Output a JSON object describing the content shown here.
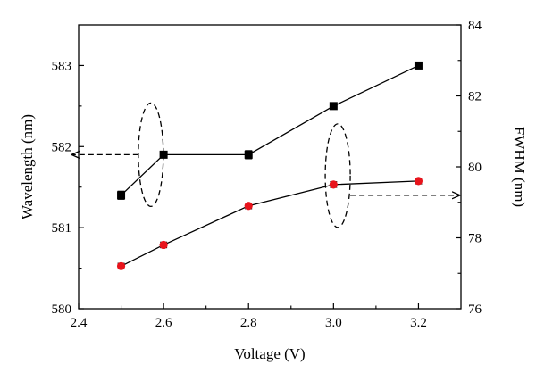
{
  "chart_data": {
    "type": "scatter",
    "x": [
      2.5,
      2.6,
      2.8,
      3.0,
      3.2
    ],
    "xlabel": "Voltage (V)",
    "ylabel_left": "Wavelength (nm)",
    "ylabel_right": "FWHM (nm)",
    "xlim": [
      2.4,
      3.3
    ],
    "ylim_left": [
      580,
      583.5
    ],
    "ylim_right": [
      76,
      84
    ],
    "x_ticks": [
      "2.4",
      "2.6",
      "2.8",
      "3.0",
      "3.2"
    ],
    "y_left_ticks": [
      "580",
      "581",
      "582",
      "583"
    ],
    "y_right_ticks": [
      "76",
      "78",
      "80",
      "82",
      "84"
    ],
    "grid": false,
    "series": [
      {
        "axis": "left",
        "color": "#000000",
        "marker": "square",
        "values": [
          581.4,
          581.9,
          581.9,
          582.5,
          583.0
        ],
        "errors": [
          0.05,
          0.03,
          0.05,
          0.03,
          0.03
        ]
      },
      {
        "axis": "right",
        "color": "#e8141c",
        "marker": "circle",
        "values": [
          77.2,
          77.8,
          78.9,
          79.5,
          79.6
        ],
        "errors": [
          0.08,
          0.08,
          0.08,
          0.08,
          0.08
        ]
      }
    ],
    "annotations": [
      {
        "kind": "ellipse-arrow",
        "series": 0,
        "at_x": 2.57,
        "points_to": "left-axis"
      },
      {
        "kind": "ellipse-arrow",
        "series": 1,
        "at_x": 3.01,
        "points_to": "right-axis"
      }
    ]
  }
}
